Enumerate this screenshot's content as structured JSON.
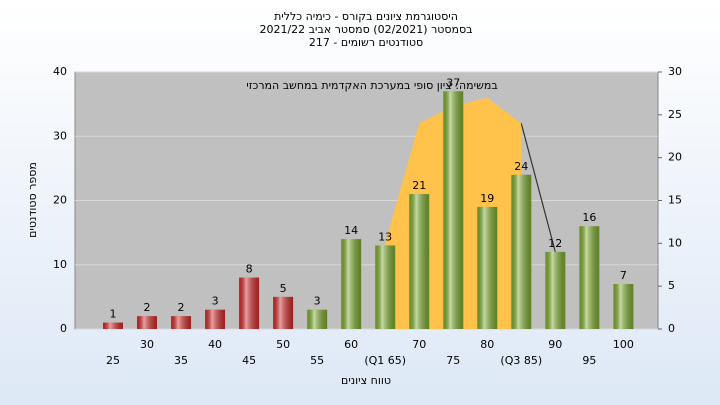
{
  "chart_data": {
    "type": "bar",
    "title": [
      "היסטוגרמת ציונים בקורס - כימיה כללית",
      "בסמסטר  (02/2021)  סמסטר אביב 2021/22",
      "סטודנטים רשומים - 217"
    ],
    "annotation": "במשימה: ציון סופי במערכת האקדמית במחשב המרכזי",
    "x_label": "טווח ציונים",
    "y_label": "מספר סטודנטים",
    "categories": [
      "25",
      "30",
      "35",
      "40",
      "45",
      "50",
      "55",
      "60",
      "(Q1 65)",
      "70",
      "75",
      "80",
      "(Q3 85)",
      "90",
      "95",
      "100"
    ],
    "values": [
      1,
      2,
      2,
      3,
      8,
      5,
      3,
      14,
      13,
      21,
      37,
      19,
      24,
      12,
      16,
      7
    ],
    "colors": [
      "#d42a2a",
      "#d42a2a",
      "#d42a2a",
      "#d42a2a",
      "#d42a2a",
      "#d42a2a",
      "#7fae2e",
      "#7fae2e",
      "#7fae2e",
      "#7fae2e",
      "#7fae2e",
      "#7fae2e",
      "#7fae2e",
      "#7fae2e",
      "#7fae2e",
      "#7fae2e"
    ],
    "series": [
      {
        "type": "area",
        "axis": "y2",
        "color": "#ffc24a",
        "values": [
          null,
          null,
          null,
          null,
          null,
          null,
          null,
          null,
          10,
          24,
          26,
          27,
          24,
          null,
          null,
          null
        ]
      },
      {
        "type": "line",
        "axis": "y2",
        "color": "#333333",
        "values": [
          null,
          null,
          null,
          null,
          null,
          null,
          null,
          null,
          null,
          null,
          null,
          null,
          24,
          9,
          null,
          null
        ]
      }
    ],
    "ylim": [
      0,
      40
    ],
    "yticks": [
      0,
      10,
      20,
      30,
      40
    ],
    "y2lim": [
      0,
      30
    ],
    "y2ticks": [
      0,
      5,
      10,
      15,
      20,
      25,
      30
    ],
    "grid": true
  }
}
